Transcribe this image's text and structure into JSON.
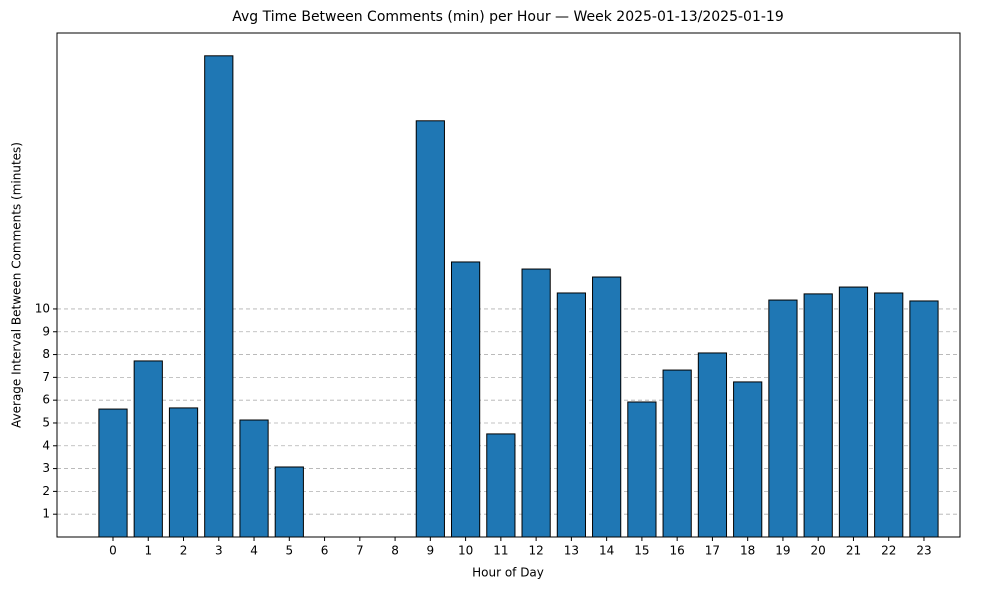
{
  "chart_data": {
    "type": "bar",
    "title": "Avg Time Between Comments (min) per Hour — Week 2025-01-13/2025-01-19",
    "x_label": "Hour of Day",
    "y_label": "Average Interval Between Comments (minutes)",
    "categories": [
      "0",
      "1",
      "2",
      "3",
      "4",
      "5",
      "6",
      "7",
      "8",
      "9",
      "10",
      "11",
      "12",
      "13",
      "14",
      "15",
      "16",
      "17",
      "18",
      "19",
      "20",
      "21",
      "22",
      "23"
    ],
    "values": [
      5.61,
      7.72,
      5.66,
      21.1,
      5.13,
      3.07,
      0,
      0,
      0,
      18.25,
      12.06,
      4.52,
      11.75,
      10.7,
      11.4,
      5.92,
      7.32,
      8.07,
      6.8,
      10.39,
      10.66,
      10.96,
      10.7,
      10.35
    ],
    "color": "#1f77b4",
    "ylim": [
      0,
      22.1
    ],
    "yticks": [
      1,
      2,
      3,
      4,
      5,
      6,
      7,
      8,
      9,
      10
    ],
    "grid": true
  }
}
